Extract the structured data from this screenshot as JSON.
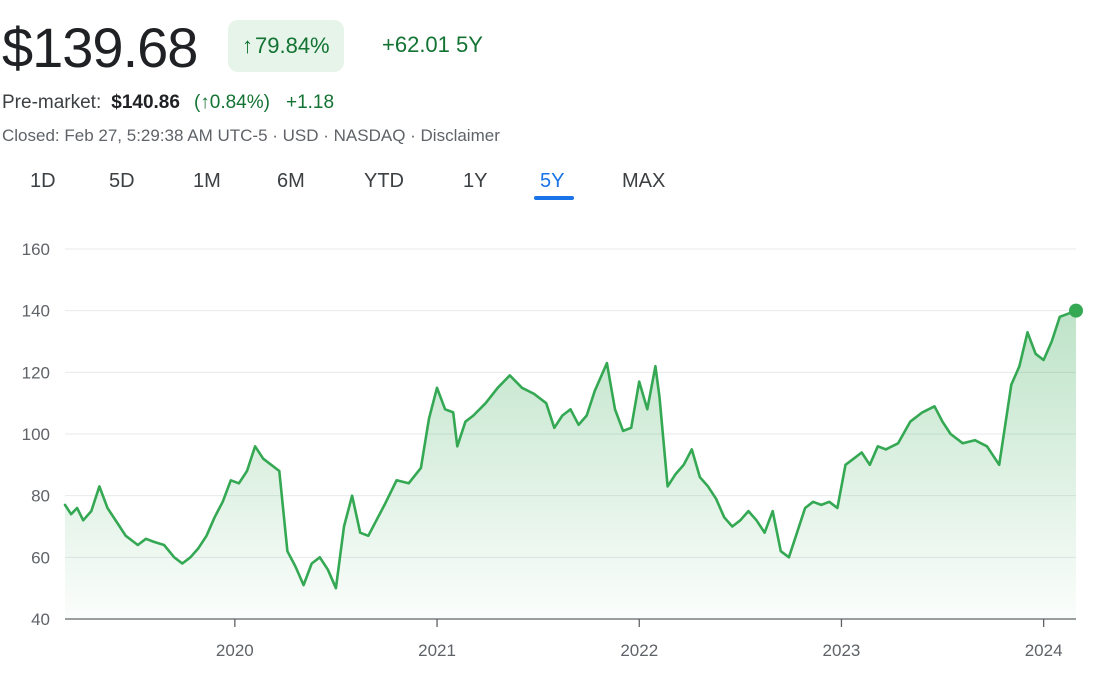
{
  "quote": {
    "price": "$139.68",
    "change_pct": "79.84%",
    "change_abs": "+62.01 5Y",
    "pre_market_label": "Pre-market:",
    "pre_market_price": "$140.86",
    "pre_market_pct": "(↑0.84%)",
    "pre_market_change": "+1.18",
    "closed_info": "Closed: Feb 27, 5:29:38 AM UTC-5 · USD · NASDAQ · Disclaimer"
  },
  "colors": {
    "up": "#137333",
    "line": "#34a853",
    "accent": "#1a73e8"
  },
  "icons": {
    "change_arrow": "arrow-up-icon"
  },
  "tabs": [
    {
      "label": "1D",
      "active": false
    },
    {
      "label": "5D",
      "active": false
    },
    {
      "label": "1M",
      "active": false
    },
    {
      "label": "6M",
      "active": false
    },
    {
      "label": "YTD",
      "active": false
    },
    {
      "label": "1Y",
      "active": false
    },
    {
      "label": "5Y",
      "active": true
    },
    {
      "label": "MAX",
      "active": false
    }
  ],
  "chart_data": {
    "type": "area",
    "title": "",
    "xlabel": "",
    "ylabel": "",
    "ylim": [
      40,
      160
    ],
    "xlim": [
      2019.16,
      2024.16
    ],
    "y_ticks": [
      40,
      60,
      80,
      100,
      120,
      140,
      160
    ],
    "x_ticks": [
      2020,
      2021,
      2022,
      2023,
      2024
    ],
    "x_tick_labels": [
      "2020",
      "2021",
      "2022",
      "2023",
      "2024"
    ],
    "grid": "horizontal",
    "last_point_marker": true,
    "series": [
      {
        "values": [
          [
            2019.16,
            77
          ],
          [
            2019.19,
            74
          ],
          [
            2019.22,
            76
          ],
          [
            2019.25,
            72
          ],
          [
            2019.29,
            75
          ],
          [
            2019.33,
            83
          ],
          [
            2019.37,
            76
          ],
          [
            2019.42,
            71
          ],
          [
            2019.46,
            67
          ],
          [
            2019.52,
            64
          ],
          [
            2019.56,
            66
          ],
          [
            2019.6,
            65
          ],
          [
            2019.65,
            64
          ],
          [
            2019.7,
            60
          ],
          [
            2019.74,
            58
          ],
          [
            2019.78,
            60
          ],
          [
            2019.82,
            63
          ],
          [
            2019.86,
            67
          ],
          [
            2019.9,
            73
          ],
          [
            2019.94,
            78
          ],
          [
            2019.98,
            85
          ],
          [
            2020.02,
            84
          ],
          [
            2020.06,
            88
          ],
          [
            2020.1,
            96
          ],
          [
            2020.14,
            92
          ],
          [
            2020.18,
            90
          ],
          [
            2020.22,
            88
          ],
          [
            2020.26,
            62
          ],
          [
            2020.3,
            57
          ],
          [
            2020.34,
            51
          ],
          [
            2020.38,
            58
          ],
          [
            2020.42,
            60
          ],
          [
            2020.46,
            56
          ],
          [
            2020.5,
            50
          ],
          [
            2020.54,
            70
          ],
          [
            2020.58,
            80
          ],
          [
            2020.62,
            68
          ],
          [
            2020.66,
            67
          ],
          [
            2020.7,
            72
          ],
          [
            2020.74,
            77
          ],
          [
            2020.8,
            85
          ],
          [
            2020.86,
            84
          ],
          [
            2020.92,
            89
          ],
          [
            2020.96,
            105
          ],
          [
            2021.0,
            115
          ],
          [
            2021.04,
            108
          ],
          [
            2021.08,
            107
          ],
          [
            2021.1,
            96
          ],
          [
            2021.14,
            104
          ],
          [
            2021.18,
            106
          ],
          [
            2021.24,
            110
          ],
          [
            2021.3,
            115
          ],
          [
            2021.36,
            119
          ],
          [
            2021.42,
            115
          ],
          [
            2021.48,
            113
          ],
          [
            2021.54,
            110
          ],
          [
            2021.58,
            102
          ],
          [
            2021.62,
            106
          ],
          [
            2021.66,
            108
          ],
          [
            2021.7,
            103
          ],
          [
            2021.74,
            106
          ],
          [
            2021.78,
            114
          ],
          [
            2021.84,
            123
          ],
          [
            2021.88,
            108
          ],
          [
            2021.92,
            101
          ],
          [
            2021.96,
            102
          ],
          [
            2022.0,
            117
          ],
          [
            2022.04,
            108
          ],
          [
            2022.08,
            122
          ],
          [
            2022.1,
            112
          ],
          [
            2022.14,
            83
          ],
          [
            2022.18,
            87
          ],
          [
            2022.22,
            90
          ],
          [
            2022.26,
            95
          ],
          [
            2022.3,
            86
          ],
          [
            2022.34,
            83
          ],
          [
            2022.38,
            79
          ],
          [
            2022.42,
            73
          ],
          [
            2022.46,
            70
          ],
          [
            2022.5,
            72
          ],
          [
            2022.54,
            75
          ],
          [
            2022.58,
            72
          ],
          [
            2022.62,
            68
          ],
          [
            2022.66,
            75
          ],
          [
            2022.7,
            62
          ],
          [
            2022.74,
            60
          ],
          [
            2022.78,
            68
          ],
          [
            2022.82,
            76
          ],
          [
            2022.86,
            78
          ],
          [
            2022.9,
            77
          ],
          [
            2022.94,
            78
          ],
          [
            2022.98,
            76
          ],
          [
            2023.02,
            90
          ],
          [
            2023.06,
            92
          ],
          [
            2023.1,
            94
          ],
          [
            2023.14,
            90
          ],
          [
            2023.18,
            96
          ],
          [
            2023.22,
            95
          ],
          [
            2023.28,
            97
          ],
          [
            2023.34,
            104
          ],
          [
            2023.4,
            107
          ],
          [
            2023.46,
            109
          ],
          [
            2023.5,
            104
          ],
          [
            2023.54,
            100
          ],
          [
            2023.6,
            97
          ],
          [
            2023.66,
            98
          ],
          [
            2023.72,
            96
          ],
          [
            2023.78,
            90
          ],
          [
            2023.84,
            116
          ],
          [
            2023.88,
            122
          ],
          [
            2023.92,
            133
          ],
          [
            2023.96,
            126
          ],
          [
            2024.0,
            124
          ],
          [
            2024.04,
            130
          ],
          [
            2024.08,
            138
          ],
          [
            2024.12,
            139
          ],
          [
            2024.16,
            140
          ]
        ]
      }
    ]
  }
}
